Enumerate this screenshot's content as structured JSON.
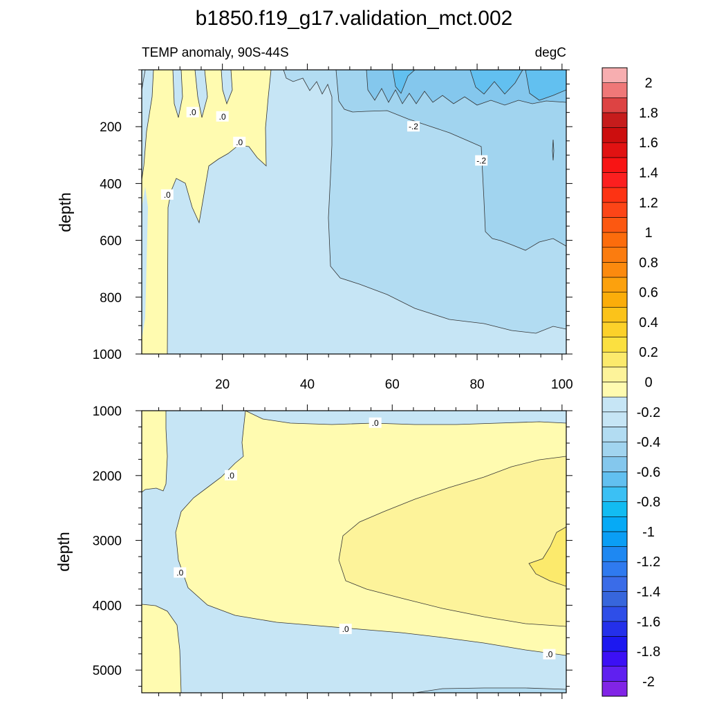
{
  "colors": {
    "neg_0_to_-0.1": "#c6e5f5",
    "neg_-0.1_to_-0.2": "#b2dcf2",
    "neg_-0.2_to_-0.3": "#a1d4ef",
    "neg_-0.3_to_-0.4": "#84c7ed",
    "neg_-0.4_to_-0.5": "#62c0f0",
    "pos_0_to_0.1": "#fffbb0",
    "pos_0.1_to_0.2": "#fdf39a",
    "pos_0.2_to_0.3": "#fcea6c",
    "line": "#333333"
  },
  "chart_data": {
    "type": "heatmap",
    "title": "b1850.f19_g17.validation_mct.002",
    "left_label": "TEMP anomaly, 90S-44S",
    "right_label": "degC",
    "x_axis": {
      "range": [
        1,
        101
      ],
      "ticks": [
        20,
        40,
        60,
        80,
        100
      ],
      "tick_labels": [
        "20",
        "40",
        "60",
        "80",
        "100"
      ]
    },
    "panels": [
      {
        "name": "upper",
        "ylabel": "depth",
        "ylim": [
          0,
          1000
        ],
        "yticks": [
          200,
          400,
          600,
          800,
          1000
        ],
        "ytick_labels": [
          "200",
          "400",
          "600",
          "800",
          "1000"
        ],
        "contour_labels": [
          {
            "text": "-.2",
            "x": 65,
            "y": 200
          },
          {
            "text": "-.2",
            "x": 81,
            "y": 320
          },
          {
            "text": ".0",
            "x": 7,
            "y": 440
          },
          {
            "text": ".0",
            "x": 13,
            "y": 150
          },
          {
            "text": ".0",
            "x": 20,
            "y": 165
          },
          {
            "text": ".0",
            "x": 24,
            "y": 255
          }
        ]
      },
      {
        "name": "lower",
        "ylabel": "depth",
        "ylim": [
          1000,
          5350
        ],
        "yticks": [
          1000,
          2000,
          3000,
          4000,
          5000
        ],
        "ytick_labels": [
          "1000",
          "2000",
          "3000",
          "4000",
          "5000"
        ],
        "contour_labels": [
          {
            "text": ".0",
            "x": 56,
            "y": 1190
          },
          {
            "text": ".0",
            "x": 22,
            "y": 2000
          },
          {
            "text": ".0",
            "x": 10,
            "y": 3500
          },
          {
            "text": ".0",
            "x": 49,
            "y": 4370
          },
          {
            "text": ".0",
            "x": 97,
            "y": 4760
          }
        ]
      }
    ],
    "colorbar": {
      "levels": [
        -2.1,
        -2,
        -1.9,
        -1.8,
        -1.7,
        -1.6,
        -1.5,
        -1.4,
        -1.3,
        -1.2,
        -1.1,
        -1,
        -0.9,
        -0.8,
        -0.7,
        -0.6,
        -0.5,
        -0.4,
        -0.3,
        -0.2,
        -0.1,
        0,
        0.1,
        0.2,
        0.3,
        0.4,
        0.5,
        0.6,
        0.7,
        0.8,
        0.9,
        1,
        1.1,
        1.2,
        1.3,
        1.4,
        1.5,
        1.6,
        1.7,
        1.8,
        1.9,
        2,
        2.1
      ],
      "colors_bottom_to_top": [
        "#8124e6",
        "#6020f0",
        "#3c10f5",
        "#1c18f0",
        "#2430ea",
        "#2e4ee8",
        "#3766dc",
        "#3a6ce8",
        "#2f7aef",
        "#1e88f2",
        "#0a9ef5",
        "#06aaf6",
        "#12bcf2",
        "#3bc0f4",
        "#62c0f0",
        "#84c7ed",
        "#a1d4ef",
        "#b2dcf2",
        "#c6e5f5",
        "#c6e5f5",
        "#fffbb0",
        "#fdf39a",
        "#fcea6c",
        "#fbe040",
        "#fcd12a",
        "#fbc31a",
        "#fbad0a",
        "#fca10d",
        "#fc8a0e",
        "#fb7c0f",
        "#fc6c0c",
        "#fc5811",
        "#fc4517",
        "#fd3313",
        "#fc1f1f",
        "#f81414",
        "#e11212",
        "#cc0e0e",
        "#c61c1c",
        "#dd4343",
        "#ef7878",
        "#f7aeb0"
      ],
      "tick_labels": [
        "2",
        "1.8",
        "1.6",
        "1.4",
        "1.2",
        "1",
        "0.8",
        "0.6",
        "0.4",
        "0.2",
        "0",
        "-0.2",
        "-0.4",
        "-0.6",
        "-0.8",
        "-1",
        "-1.2",
        "-1.4",
        "-1.6",
        "-1.8",
        "-2"
      ],
      "tick_values": [
        2,
        1.8,
        1.6,
        1.4,
        1.2,
        1,
        0.8,
        0.6,
        0.4,
        0.2,
        0,
        -0.2,
        -0.4,
        -0.6,
        -0.8,
        -1,
        -1.2,
        -1.4,
        -1.6,
        -1.8,
        -2
      ]
    }
  }
}
